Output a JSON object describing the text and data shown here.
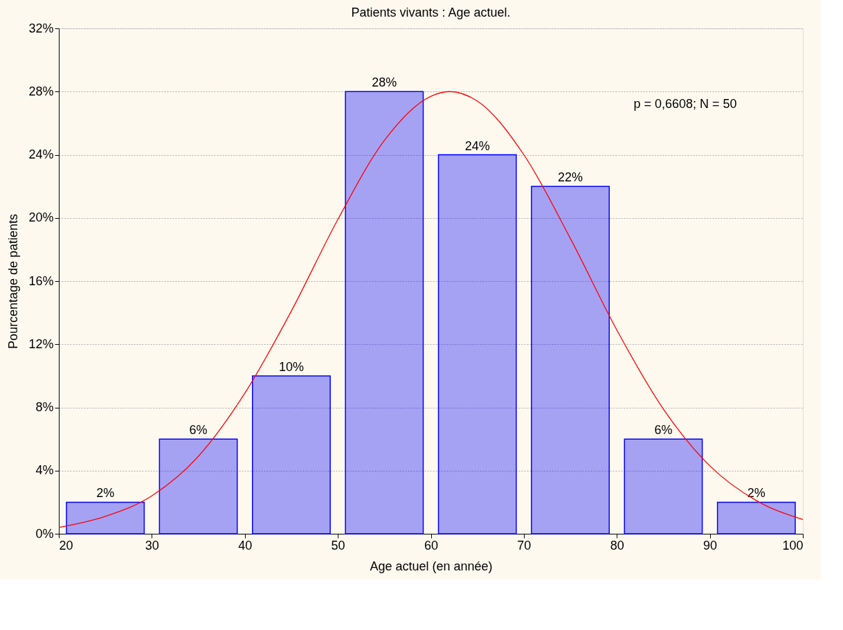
{
  "chart_data": {
    "type": "histogram",
    "title": "Patients vivants : Age actuel.",
    "xlabel": "Age actuel (en année)",
    "ylabel": "Pourcentage de patients",
    "bins": [
      20,
      30,
      40,
      50,
      60,
      70,
      80,
      90,
      100
    ],
    "values": [
      2,
      6,
      10,
      28,
      24,
      22,
      6,
      2
    ],
    "value_labels": [
      "2%",
      "6%",
      "10%",
      "28%",
      "24%",
      "22%",
      "6%",
      "2%"
    ],
    "color": "#0000ff",
    "series": [
      {
        "type": "line",
        "color": "#ff0000",
        "x": [
          20,
          25,
          30,
          35,
          40,
          45,
          50,
          55,
          60,
          62,
          65,
          70,
          75,
          80,
          85,
          90,
          95,
          100
        ],
        "values": [
          0.4,
          1.1,
          2.4,
          4.9,
          8.9,
          14.1,
          19.9,
          24.9,
          27.7,
          28,
          27.4,
          24,
          18.7,
          12.9,
          7.9,
          4.3,
          2.1,
          0.9
        ]
      }
    ],
    "annotations": [
      "p = 0,6608;  N = 50"
    ],
    "xlim": [
      20,
      100
    ],
    "xticks": [
      20,
      30,
      40,
      50,
      60,
      70,
      80,
      90,
      100
    ],
    "ylim": [
      0,
      32
    ],
    "yticks": [
      {
        "value": 0,
        "label": "0%"
      },
      {
        "value": 4,
        "label": "4%"
      },
      {
        "value": 8,
        "label": "8%"
      },
      {
        "value": 12,
        "label": "12%"
      },
      {
        "value": 16,
        "label": "16%"
      },
      {
        "value": 20,
        "label": "20%"
      },
      {
        "value": 24,
        "label": "24%"
      },
      {
        "value": 28,
        "label": "28%"
      },
      {
        "value": 32,
        "label": "32%"
      }
    ],
    "grid": "y"
  }
}
